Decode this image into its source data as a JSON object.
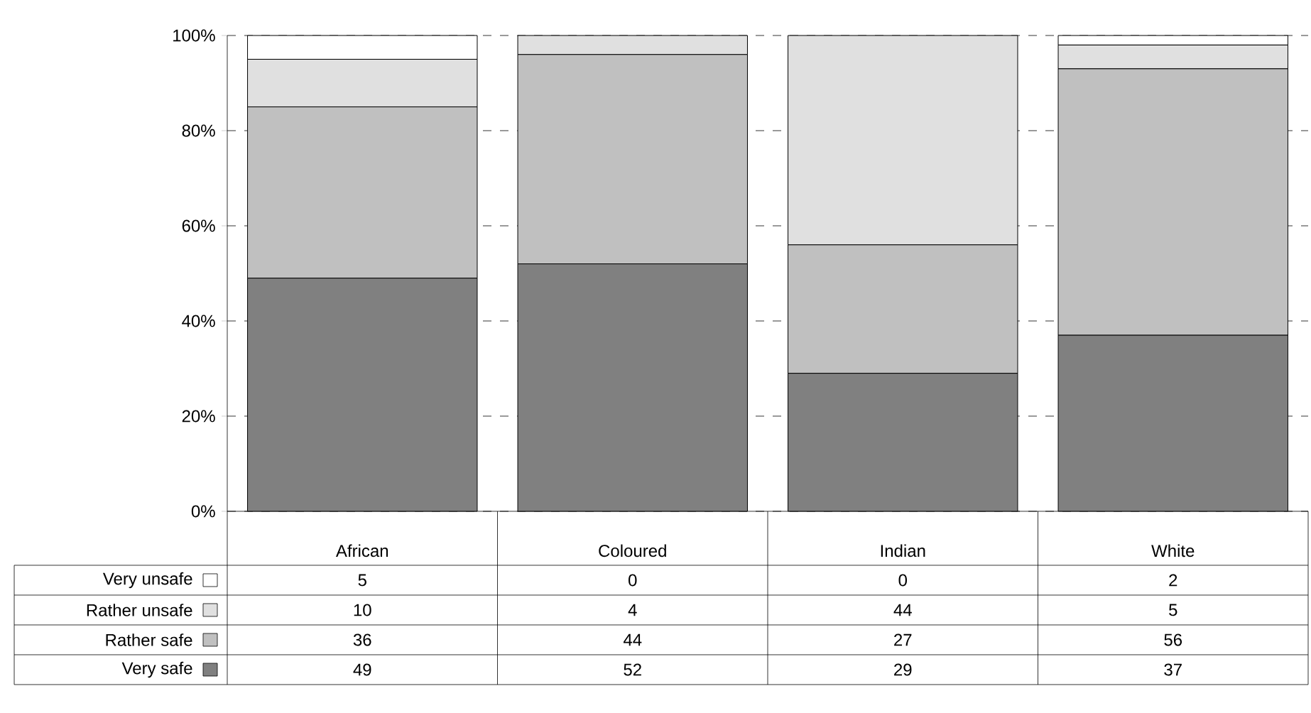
{
  "chart_data": {
    "type": "bar",
    "stacked": true,
    "categories": [
      "African",
      "Coloured",
      "Indian",
      "White"
    ],
    "series": [
      {
        "name": "Very safe",
        "color": "#808080",
        "values": [
          49,
          52,
          29,
          37
        ]
      },
      {
        "name": "Rather safe",
        "color": "#c0c0c0",
        "values": [
          36,
          44,
          27,
          56
        ]
      },
      {
        "name": "Rather unsafe",
        "color": "#e0e0e0",
        "values": [
          10,
          4,
          44,
          5
        ]
      },
      {
        "name": "Very unsafe",
        "color": "#ffffff",
        "values": [
          5,
          0,
          0,
          2
        ]
      }
    ],
    "ylim": [
      0,
      100
    ],
    "yticks": [
      {
        "value": 0,
        "label": "0%"
      },
      {
        "value": 20,
        "label": "20%"
      },
      {
        "value": 40,
        "label": "40%"
      },
      {
        "value": 60,
        "label": "60%"
      },
      {
        "value": 80,
        "label": "80%"
      },
      {
        "value": 100,
        "label": "100%"
      }
    ],
    "grid": "y",
    "legend": "bottom left",
    "data_labels": true
  }
}
